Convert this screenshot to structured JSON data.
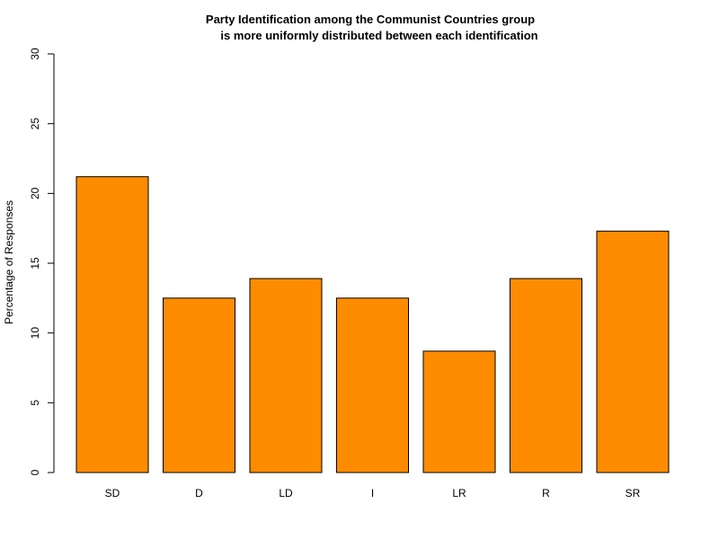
{
  "chart_data": {
    "type": "bar",
    "title_lines": [
      "Party Identification among the Communist Countries group",
      "is more uniformly distributed between each identification"
    ],
    "xlabel": "",
    "ylabel": "Percentage of Responses",
    "categories": [
      "SD",
      "D",
      "LD",
      "I",
      "LR",
      "R",
      "SR"
    ],
    "values": [
      21.2,
      12.5,
      13.9,
      12.5,
      8.7,
      13.9,
      17.3
    ],
    "ylim": [
      0,
      30
    ],
    "yticks": [
      0,
      5,
      10,
      15,
      20,
      25,
      30
    ],
    "bar_color": "#FF8C00",
    "grid": false,
    "legend": "none"
  }
}
